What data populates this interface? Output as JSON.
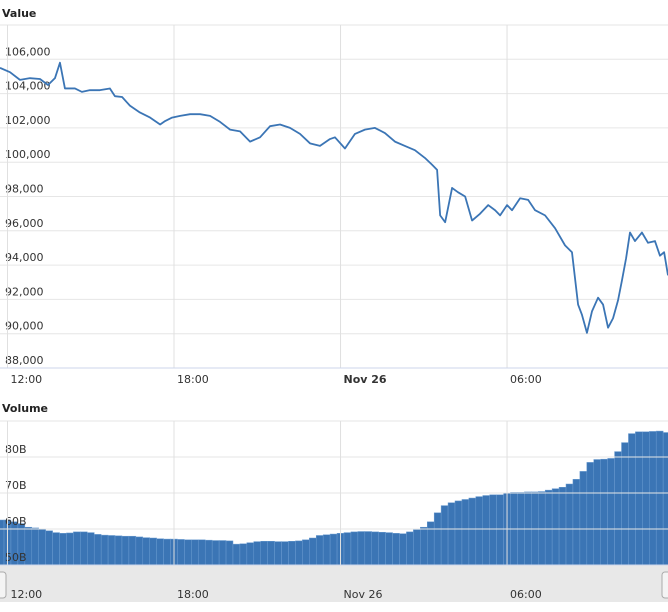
{
  "chart_data": [
    {
      "type": "line",
      "title": "Value",
      "x": [
        11.73,
        12.09,
        12.45,
        12.81,
        13.17,
        13.46,
        13.71,
        13.89,
        14.07,
        14.43,
        14.68,
        14.97,
        15.33,
        15.69,
        15.87,
        16.13,
        16.41,
        16.77,
        17.14,
        17.5,
        17.68,
        17.93,
        18.22,
        18.58,
        18.94,
        19.3,
        19.66,
        20.02,
        20.38,
        20.74,
        21.1,
        21.46,
        21.82,
        22.18,
        22.54,
        22.9,
        23.26,
        23.62,
        23.8,
        24.16,
        24.52,
        24.88,
        25.24,
        25.6,
        25.96,
        26.32,
        26.68,
        27.04,
        27.3,
        27.48,
        27.59,
        27.77,
        28.02,
        28.23,
        28.49,
        28.74,
        29.03,
        29.32,
        29.57,
        29.75,
        30.0,
        30.18,
        30.47,
        30.76,
        31.01,
        31.37,
        31.73,
        32.09,
        32.34,
        32.56,
        32.7,
        32.88,
        33.06,
        33.28,
        33.46,
        33.64,
        33.82,
        34.0,
        34.14,
        34.29,
        34.43,
        34.61,
        34.86,
        35.08,
        35.33,
        35.51,
        35.66,
        35.8
      ],
      "values": [
        105500,
        105250,
        104800,
        104900,
        104850,
        104500,
        104900,
        105800,
        104300,
        104300,
        104100,
        104200,
        104200,
        104300,
        103850,
        103800,
        103300,
        102900,
        102600,
        102200,
        102400,
        102600,
        102700,
        102800,
        102800,
        102700,
        102350,
        101900,
        101800,
        101200,
        101450,
        102100,
        102200,
        102000,
        101650,
        101100,
        100950,
        101350,
        101450,
        100800,
        101650,
        101900,
        102000,
        101700,
        101200,
        100950,
        100700,
        100250,
        99850,
        99550,
        96900,
        96500,
        98500,
        98250,
        98000,
        96600,
        97000,
        97500,
        97200,
        96900,
        97500,
        97200,
        97900,
        97800,
        97200,
        96900,
        96150,
        95150,
        94750,
        91700,
        91100,
        90050,
        91300,
        92100,
        91700,
        90350,
        90900,
        91950,
        93100,
        94400,
        95900,
        95400,
        95900,
        95300,
        95400,
        94550,
        94750,
        93400
      ],
      "color": "#3b75b5",
      "xlim": [
        11.73,
        35.8
      ],
      "ylim": [
        88000,
        108000
      ],
      "yticks": [
        {
          "value": 88000,
          "label": "88,000"
        },
        {
          "value": 90000,
          "label": "90,000"
        },
        {
          "value": 92000,
          "label": "92,000"
        },
        {
          "value": 94000,
          "label": "94,000"
        },
        {
          "value": 96000,
          "label": "96,000"
        },
        {
          "value": 98000,
          "label": "98,000"
        },
        {
          "value": 100000,
          "label": "100,000"
        },
        {
          "value": 102000,
          "label": "102,000"
        },
        {
          "value": 104000,
          "label": "104,000"
        },
        {
          "value": 106000,
          "label": "106,000"
        }
      ],
      "xticks": [
        {
          "value": 12,
          "label": "12:00"
        },
        {
          "value": 18,
          "label": "18:00"
        },
        {
          "value": 24,
          "label": "Nov 26"
        },
        {
          "value": 30,
          "label": "06:00"
        }
      ],
      "grid": true
    },
    {
      "type": "bar",
      "title": "Volume",
      "x": [
        11.75,
        12,
        12.25,
        12.5,
        12.75,
        13,
        13.25,
        13.5,
        13.75,
        14,
        14.25,
        14.5,
        14.75,
        15,
        15.25,
        15.5,
        15.75,
        16,
        16.25,
        16.5,
        16.75,
        17,
        17.25,
        17.5,
        17.75,
        18,
        18.25,
        18.5,
        18.75,
        19,
        19.25,
        19.5,
        19.75,
        20,
        20.25,
        20.5,
        20.75,
        21,
        21.25,
        21.5,
        21.75,
        22,
        22.25,
        22.5,
        22.75,
        23,
        23.25,
        23.5,
        23.75,
        24,
        24.25,
        24.5,
        24.75,
        25,
        25.25,
        25.5,
        25.75,
        26,
        26.25,
        26.5,
        26.75,
        27,
        27.25,
        27.5,
        27.75,
        28,
        28.25,
        28.5,
        28.75,
        29,
        29.25,
        29.5,
        29.75,
        30,
        30.25,
        30.5,
        30.75,
        31,
        31.25,
        31.5,
        31.75,
        32,
        32.25,
        32.5,
        32.75,
        33,
        33.25,
        33.5,
        33.75,
        34,
        34.25,
        34.5,
        34.75,
        35,
        35.25,
        35.5,
        35.75
      ],
      "values": [
        62.5,
        62.5,
        62,
        61.5,
        60.5,
        60.3,
        60,
        59.5,
        59,
        58.8,
        58.9,
        59.2,
        59.2,
        59,
        58.5,
        58.3,
        58.2,
        58.1,
        58,
        58,
        57.8,
        57.6,
        57.5,
        57.3,
        57.2,
        57.2,
        57.1,
        57,
        57,
        57,
        56.9,
        56.8,
        56.8,
        56.7,
        55.8,
        55.9,
        56.2,
        56.5,
        56.6,
        56.6,
        56.5,
        56.5,
        56.6,
        56.7,
        57,
        57.5,
        58.2,
        58.4,
        58.6,
        58.8,
        59,
        59.2,
        59.3,
        59.3,
        59.2,
        59.1,
        59,
        58.8,
        58.7,
        59.2,
        59.8,
        60.5,
        62,
        64.5,
        66.5,
        67.3,
        67.8,
        68.2,
        68.6,
        69,
        69.3,
        69.5,
        69.5,
        70,
        70.2,
        70.2,
        70.3,
        70.3,
        70.4,
        70.8,
        71.2,
        71.6,
        72.5,
        73.8,
        76,
        78.5,
        79.3,
        79.4,
        79.6,
        81.5,
        84,
        86.5,
        87,
        87,
        87.1,
        87.2,
        86.8
      ],
      "color": "#3b75b5",
      "xlim": [
        11.73,
        35.8
      ],
      "ylim": [
        50,
        90
      ],
      "yticks": [
        {
          "value": 50,
          "label": "50B"
        },
        {
          "value": 60,
          "label": "60B"
        },
        {
          "value": 70,
          "label": "70B"
        },
        {
          "value": 80,
          "label": "80B"
        }
      ],
      "xticks": [
        {
          "value": 12,
          "label": "12:00"
        },
        {
          "value": 18,
          "label": "18:00"
        },
        {
          "value": 24,
          "label": "Nov 26"
        },
        {
          "value": 30,
          "label": "06:00"
        }
      ],
      "grid": true
    }
  ]
}
